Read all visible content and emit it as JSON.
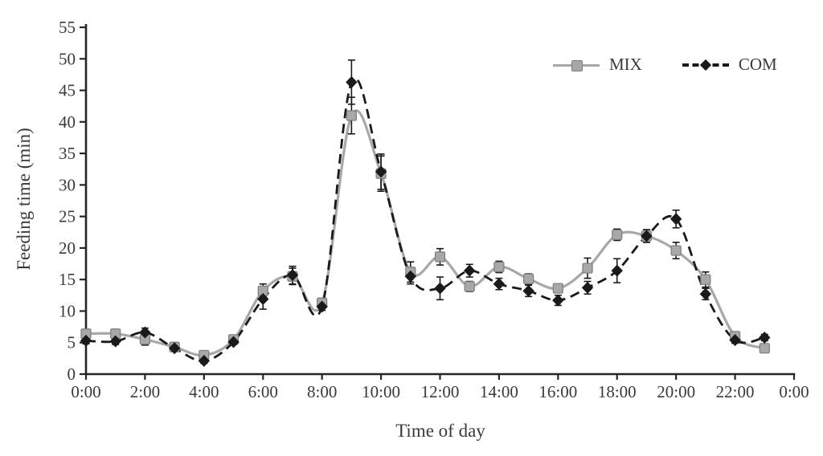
{
  "background": "#ffffff",
  "chart_data": {
    "type": "line",
    "title": "",
    "xlabel": "Time of day",
    "ylabel": "Feeding time (min)",
    "grid": false,
    "legend_position": "top-right-inside",
    "xlim_hours": [
      0,
      24
    ],
    "ylim": [
      0,
      55
    ],
    "y_ticks": [
      0,
      5,
      10,
      15,
      20,
      25,
      30,
      35,
      40,
      45,
      50,
      55
    ],
    "x_tick_labels": [
      "0:00",
      "2:00",
      "4:00",
      "6:00",
      "8:00",
      "10:00",
      "12:00",
      "14:00",
      "16:00",
      "18:00",
      "20:00",
      "22:00",
      "0:00"
    ],
    "x_hours": [
      0,
      1,
      2,
      3,
      4,
      5,
      6,
      7,
      8,
      9,
      10,
      11,
      12,
      13,
      14,
      15,
      16,
      17,
      18,
      19,
      20,
      21,
      22,
      23
    ],
    "series": [
      {
        "name": "MIX",
        "marker": "square",
        "line_style": "solid",
        "color": "#a8a8a8",
        "marker_border": "#7d7d7d",
        "values": [
          6.4,
          6.4,
          5.5,
          4.3,
          3.0,
          5.5,
          13.2,
          15.5,
          11.3,
          41.0,
          31.8,
          16.2,
          18.6,
          13.9,
          17.0,
          15.1,
          13.6,
          16.8,
          22.1,
          21.9,
          19.6,
          15.0,
          6.0,
          4.1
        ],
        "errors": [
          0.5,
          0.5,
          0.9,
          0.4,
          0.3,
          0.4,
          1.1,
          1.3,
          0.7,
          2.9,
          2.8,
          1.6,
          1.3,
          0.8,
          0.9,
          0.8,
          0.7,
          1.6,
          0.9,
          1.0,
          1.3,
          1.2,
          0.5,
          0.4
        ]
      },
      {
        "name": "COM",
        "marker": "diamond",
        "line_style": "dashed",
        "color": "#1a1a1a",
        "marker_border": "#1a1a1a",
        "values": [
          5.3,
          5.2,
          6.6,
          4.1,
          2.1,
          5.1,
          11.9,
          15.7,
          10.7,
          46.3,
          32.1,
          15.5,
          13.6,
          16.4,
          14.3,
          13.2,
          11.7,
          13.7,
          16.4,
          21.9,
          24.6,
          12.7,
          5.4,
          5.8
        ],
        "errors": [
          0.5,
          0.5,
          0.7,
          0.4,
          0.4,
          0.4,
          1.6,
          1.4,
          0.6,
          3.5,
          2.8,
          1.2,
          1.8,
          1.0,
          0.9,
          0.9,
          0.8,
          1.0,
          1.9,
          1.0,
          1.4,
          0.9,
          0.5,
          0.5
        ]
      }
    ],
    "error_bar_color": "#1a1a1a",
    "axis_color": "#262626",
    "text_color": "#3a3a3a"
  }
}
